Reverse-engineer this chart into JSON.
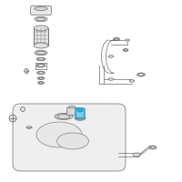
{
  "bg_color": "#ffffff",
  "line_color": "#6a6a6a",
  "highlight_color": "#1fa0d0",
  "highlight_fill": "#7fd0e8",
  "figsize": [
    2.0,
    2.0
  ],
  "dpi": 100,
  "xlim": [
    0,
    200
  ],
  "ylim": [
    0,
    200
  ]
}
